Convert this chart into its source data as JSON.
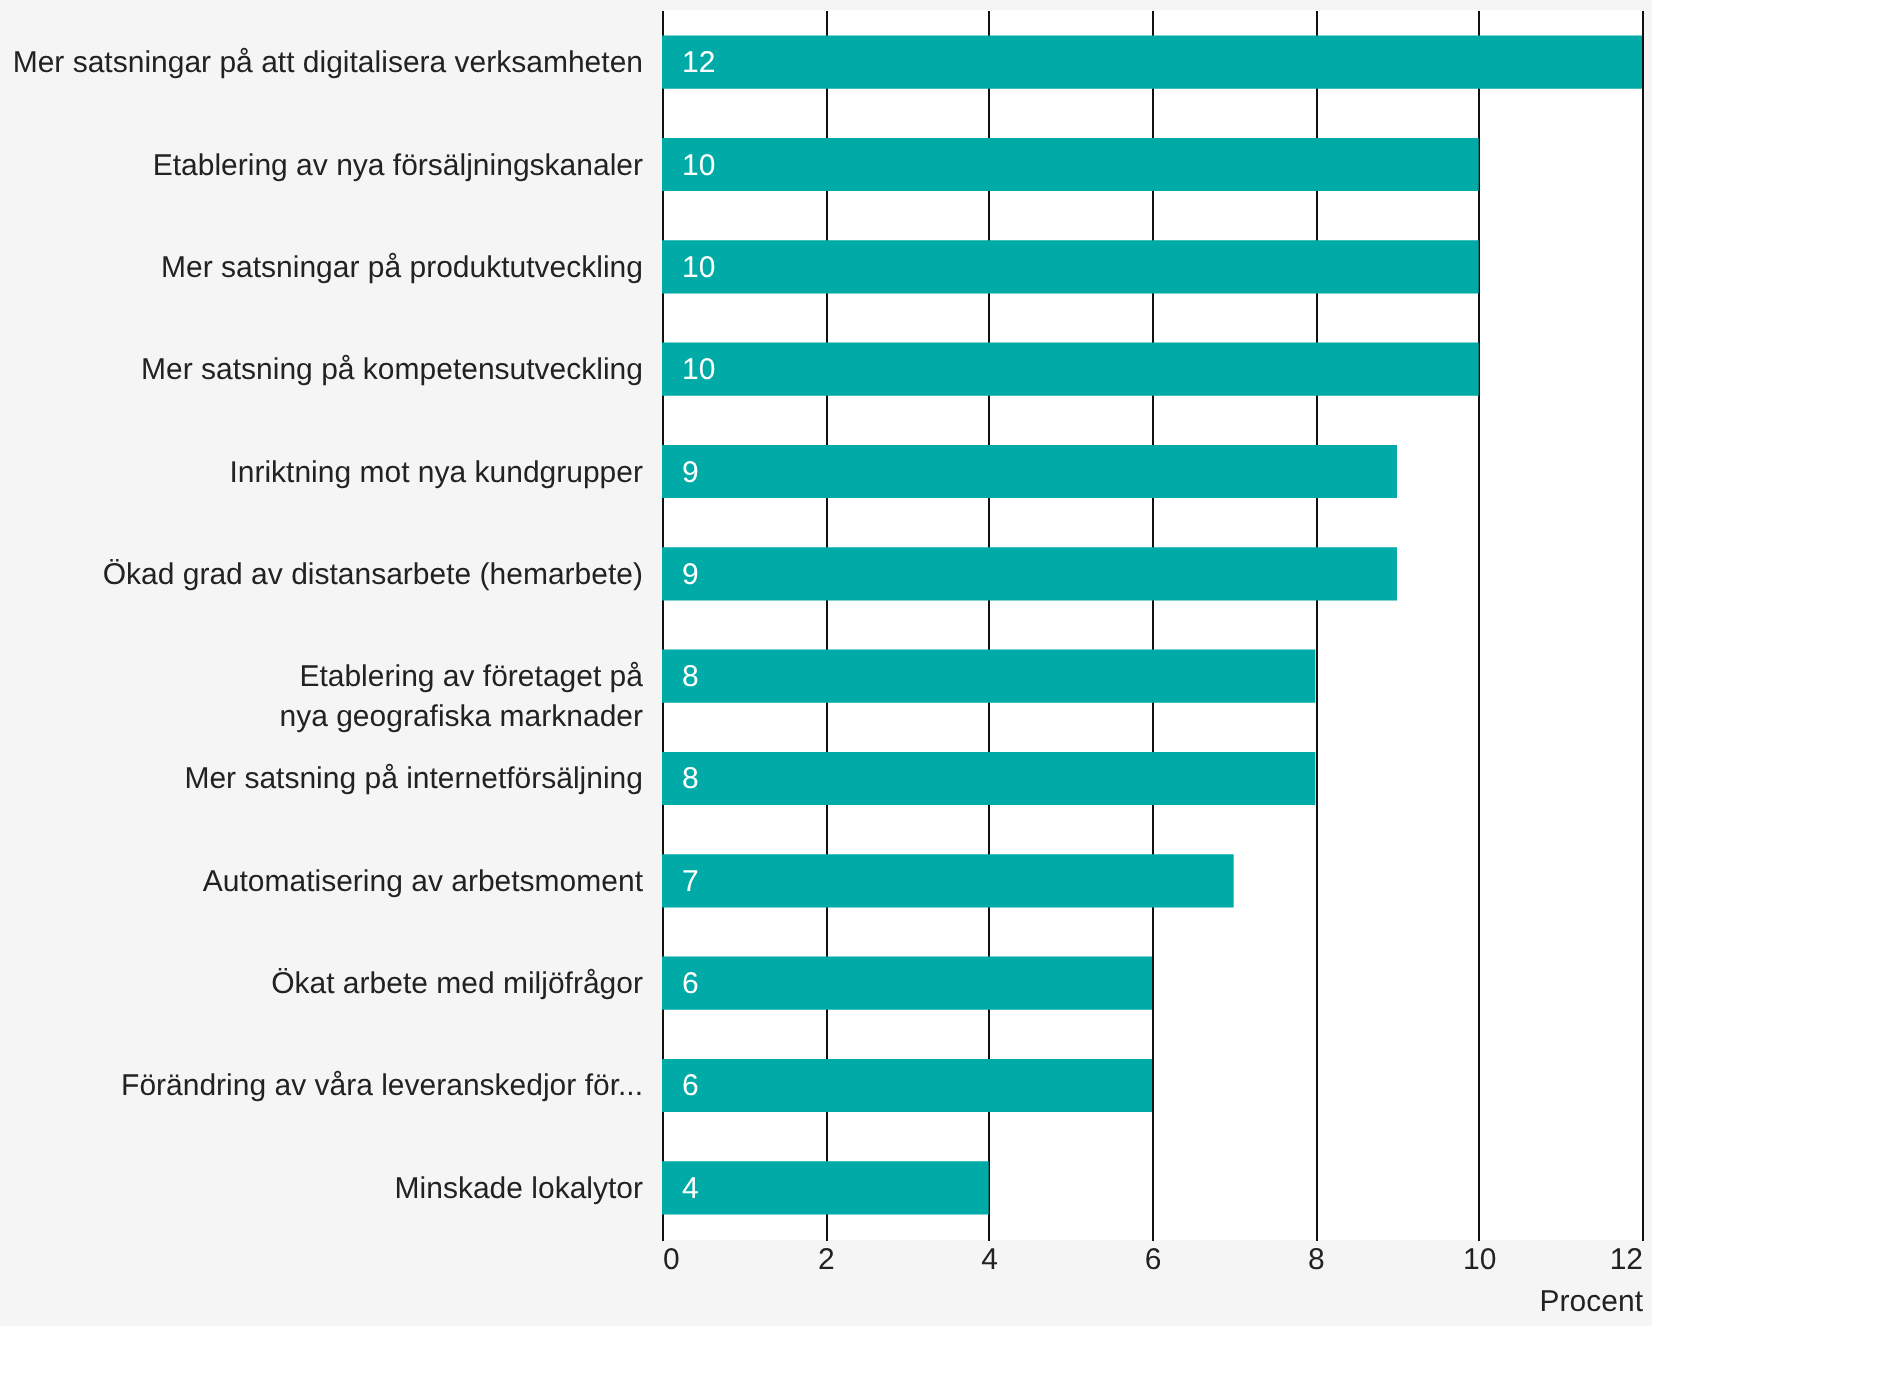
{
  "chart_data": {
    "type": "bar",
    "orientation": "horizontal",
    "xlabel": "Procent",
    "categories": [
      "Mer satsningar på att digitalisera verksamheten",
      "Etablering av nya försäljningskanaler",
      "Mer satsningar på produktutveckling",
      "Mer satsning på kompetensutveckling",
      "Inriktning mot nya kundgrupper",
      "Ökad grad av distansarbete (hemarbete)",
      "Etablering av företaget på\nnya geografiska marknader",
      "Mer satsning på internetförsäljning",
      "Automatisering av arbetsmoment",
      "Ökat arbete med miljöfrågor",
      "Förändring av våra leveranskedjor för...",
      "Minskade lokalytor"
    ],
    "values": [
      12,
      10,
      10,
      10,
      9,
      9,
      8,
      8,
      7,
      6,
      6,
      4
    ],
    "color": "#00aaa6",
    "xlim": [
      0,
      12
    ],
    "xticks": [
      0,
      2,
      4,
      6,
      8,
      10,
      12
    ],
    "grid": "x",
    "data_labels": true
  }
}
